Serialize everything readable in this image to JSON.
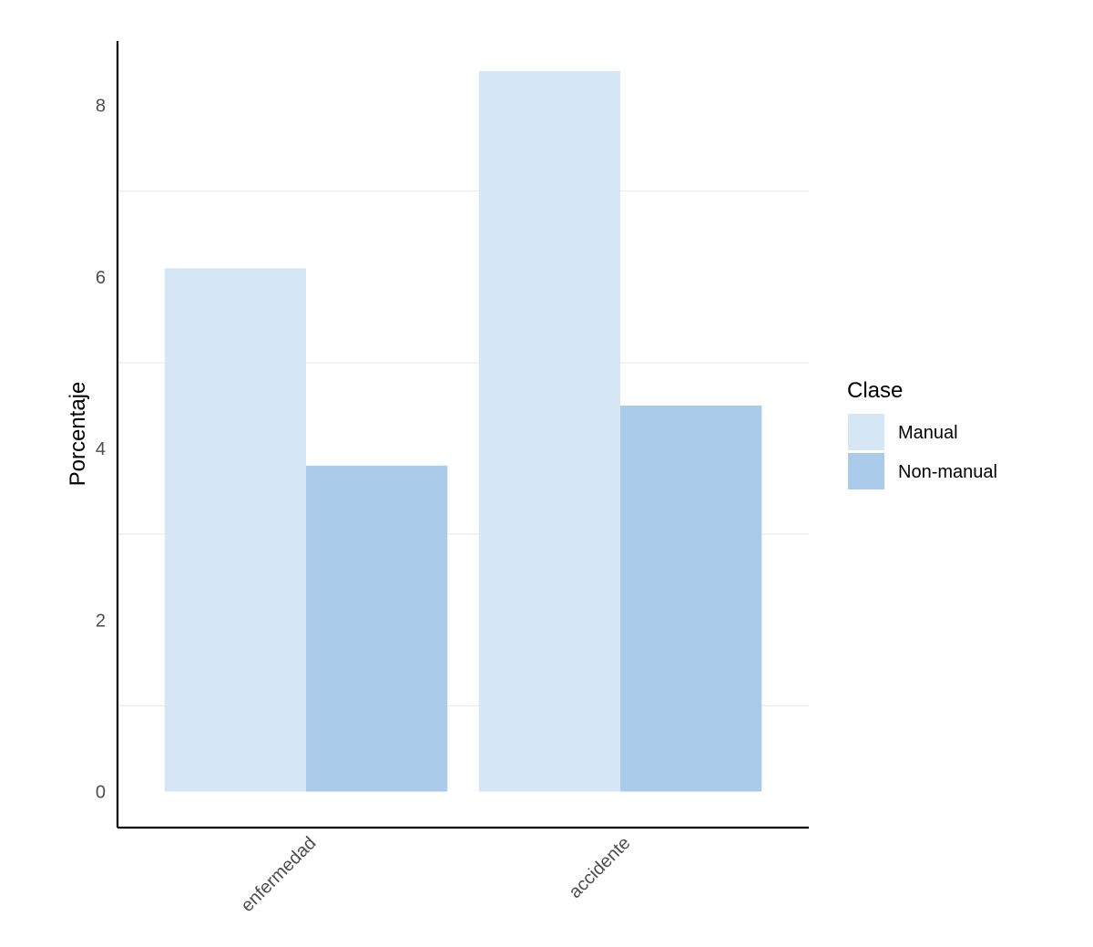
{
  "chart_data": {
    "type": "bar",
    "title": "",
    "xlabel": "",
    "ylabel": "Porcentaje",
    "categories": [
      "enfermedad",
      "accidente"
    ],
    "series": [
      {
        "name": "Manual",
        "values": [
          6.1,
          8.4
        ],
        "color": "#d5e7f5"
      },
      {
        "name": "Non-manual",
        "values": [
          3.8,
          4.5
        ],
        "color": "#abcbea"
      }
    ],
    "ylim": [
      -0.42,
      8.75
    ],
    "yticks": [
      0,
      2,
      4,
      6,
      8
    ],
    "grid": "horizontal minor lines only",
    "legend": {
      "title": "Clase",
      "position": "right"
    }
  }
}
